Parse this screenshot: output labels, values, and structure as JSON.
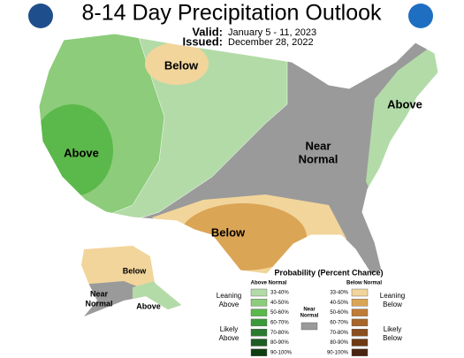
{
  "header": {
    "title": "8-14 Day Precipitation Outlook",
    "valid_label": "Valid:",
    "valid": "January 5 - 11, 2023",
    "issued_label": "Issued:",
    "issued": "December 28, 2022"
  },
  "map_labels": {
    "north": "Below",
    "west": "Above",
    "center": [
      "Near",
      "Normal"
    ],
    "east": "Above",
    "south": "Below",
    "alaska_north": "Below",
    "alaska_south": [
      "Near",
      "Normal"
    ],
    "alaska_east": "Above"
  },
  "legend": {
    "title": "Probability (Percent Chance)",
    "above_header": "Above Normal",
    "below_header": "Below Normal",
    "near_header": [
      "Near",
      "Normal"
    ],
    "above": [
      "33-40%",
      "40-50%",
      "50-60%",
      "60-70%",
      "70-80%",
      "80-90%",
      "90-100%"
    ],
    "below": [
      "33-40%",
      "40-50%",
      "50-60%",
      "60-70%",
      "70-80%",
      "80-90%",
      "90-100%"
    ],
    "leaning_above": [
      "Leaning",
      "Above"
    ],
    "likely_above": [
      "Likely",
      "Above"
    ],
    "leaning_below": [
      "Leaning",
      "Below"
    ],
    "likely_below": [
      "Likely",
      "Below"
    ]
  }
}
